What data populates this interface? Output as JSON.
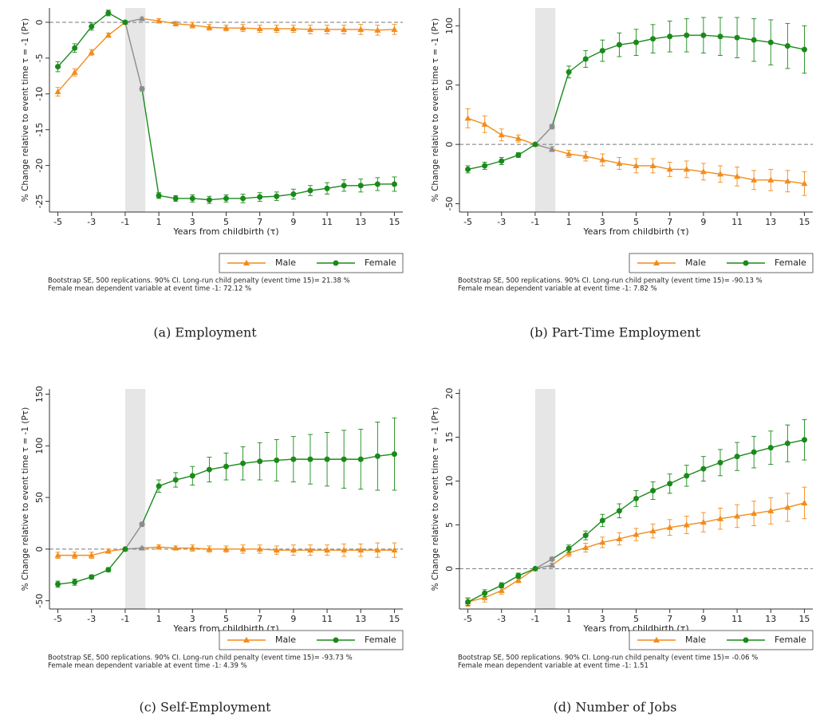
{
  "chart_data": [
    {
      "type": "line",
      "caption": "(a) Employment",
      "xlabel": "Years from childbirth (τ)",
      "ylabel": "% Change relative to event time τ = -1 (Pτ)",
      "x": [
        -5,
        -4,
        -3,
        -2,
        -1,
        0,
        1,
        2,
        3,
        4,
        5,
        6,
        7,
        8,
        9,
        10,
        11,
        12,
        13,
        14,
        15
      ],
      "xlim": [
        -5.5,
        15.5
      ],
      "xticks": [
        -5,
        -3,
        -1,
        1,
        3,
        5,
        7,
        9,
        11,
        13,
        15
      ],
      "ylim": [
        -26.5,
        2
      ],
      "yticks": [
        -25,
        -20,
        -15,
        -10,
        -5,
        0
      ],
      "ref_line": 0,
      "shade": [
        -1,
        0.2
      ],
      "event_color": "#8c8c8c",
      "legend": "bottom-right",
      "series": [
        {
          "name": "Male",
          "color": "#f28c1a",
          "marker": "triangle",
          "values": [
            -9.7,
            -7.0,
            -4.2,
            -1.8,
            0,
            0.5,
            0.2,
            -0.2,
            -0.4,
            -0.7,
            -0.8,
            -0.8,
            -0.9,
            -0.9,
            -0.9,
            -1.0,
            -1.0,
            -1.0,
            -1.0,
            -1.1,
            -1.0
          ],
          "errors": [
            0.6,
            0.5,
            0.4,
            0.3,
            0,
            0.2,
            0.3,
            0.3,
            0.4,
            0.4,
            0.4,
            0.5,
            0.5,
            0.5,
            0.5,
            0.6,
            0.6,
            0.6,
            0.7,
            0.7,
            0.7
          ]
        },
        {
          "name": "Female",
          "color": "#1a8a1a",
          "marker": "circle",
          "values": [
            -6.2,
            -3.6,
            -0.6,
            1.3,
            0,
            -9.3,
            -24.2,
            -24.6,
            -24.6,
            -24.8,
            -24.6,
            -24.6,
            -24.4,
            -24.3,
            -24.0,
            -23.5,
            -23.2,
            -22.8,
            -22.8,
            -22.6,
            -22.6
          ],
          "errors": [
            0.7,
            0.6,
            0.5,
            0.4,
            0,
            0.3,
            0.4,
            0.4,
            0.5,
            0.5,
            0.5,
            0.6,
            0.6,
            0.6,
            0.7,
            0.7,
            0.8,
            0.8,
            0.9,
            0.9,
            1.0
          ]
        }
      ],
      "notes": [
        "Bootstrap SE, 500 replications. 90% CI. Long-run child penalty (event time 15)= 21.38 %",
        "Female mean dependent variable at event time -1: 72.12 %"
      ]
    },
    {
      "type": "line",
      "caption": "(b) Part-Time Employment",
      "xlabel": "Years from childbirth (τ)",
      "ylabel": "% Change relative to event time τ = -1 (Pτ)",
      "x": [
        -5,
        -4,
        -3,
        -2,
        -1,
        0,
        1,
        2,
        3,
        4,
        5,
        6,
        7,
        8,
        9,
        10,
        11,
        12,
        13,
        14,
        15
      ],
      "xlim": [
        -5.5,
        15.5
      ],
      "xticks": [
        -5,
        -3,
        -1,
        1,
        3,
        5,
        7,
        9,
        11,
        13,
        15
      ],
      "ylim": [
        -57,
        115
      ],
      "yticks": [
        -50,
        0,
        50,
        100
      ],
      "ref_line": 0,
      "shade": [
        -1,
        0.2
      ],
      "event_color": "#8c8c8c",
      "legend": "bottom-right",
      "series": [
        {
          "name": "Male",
          "color": "#f28c1a",
          "marker": "triangle",
          "values": [
            22,
            17,
            8,
            5,
            0,
            -4,
            -8,
            -10,
            -13,
            -16,
            -18,
            -18,
            -21,
            -21,
            -23,
            -25,
            -27,
            -30,
            -30,
            -31,
            -33
          ],
          "errors": [
            8,
            7,
            5,
            3,
            0,
            2,
            3,
            4,
            5,
            5,
            6,
            6,
            6,
            7,
            7,
            7,
            8,
            8,
            9,
            9,
            10
          ]
        },
        {
          "name": "Female",
          "color": "#1a8a1a",
          "marker": "circle",
          "values": [
            -21,
            -18,
            -14,
            -9,
            0,
            15,
            61,
            72,
            79,
            84,
            86,
            89,
            91,
            92,
            92,
            91,
            90,
            88,
            86,
            83,
            80
          ],
          "errors": [
            3,
            3,
            3,
            2,
            0,
            2,
            5,
            7,
            9,
            10,
            11,
            12,
            13,
            14,
            15,
            16,
            17,
            18,
            19,
            19,
            20
          ]
        }
      ],
      "notes": [
        "Bootstrap SE, 500 replications. 90% CI. Long-run child penalty (event time 15)= -90.13 %",
        "Female mean dependent variable at event time -1: 7.82 %"
      ]
    },
    {
      "type": "line",
      "caption": "(c) Self-Employment",
      "xlabel": "Years from childbirth (τ)",
      "ylabel": "% Change relative to event time τ = -1 (Pτ)",
      "x": [
        -5,
        -4,
        -3,
        -2,
        -1,
        0,
        1,
        2,
        3,
        4,
        5,
        6,
        7,
        8,
        9,
        10,
        11,
        12,
        13,
        14,
        15
      ],
      "xlim": [
        -5.5,
        15.5
      ],
      "xticks": [
        -5,
        -3,
        -1,
        1,
        3,
        5,
        7,
        9,
        11,
        13,
        15
      ],
      "ylim": [
        -58,
        155
      ],
      "yticks": [
        -50,
        0,
        50,
        100,
        150
      ],
      "ref_line": 0,
      "shade": [
        -1,
        0.2
      ],
      "event_color": "#8c8c8c",
      "legend": "bottom-right",
      "series": [
        {
          "name": "Male",
          "color": "#f28c1a",
          "marker": "triangle",
          "values": [
            -6,
            -6,
            -6,
            -2,
            0,
            1,
            2,
            1,
            1,
            0,
            0,
            0,
            0,
            -1,
            -1,
            -1,
            -1,
            -1,
            -1,
            -1,
            -1
          ],
          "errors": [
            3,
            3,
            3,
            2,
            0,
            1,
            2,
            2,
            3,
            3,
            3,
            4,
            4,
            4,
            5,
            5,
            5,
            6,
            6,
            7,
            7
          ]
        },
        {
          "name": "Female",
          "color": "#1a8a1a",
          "marker": "circle",
          "values": [
            -34,
            -32,
            -27,
            -20,
            0,
            24,
            61,
            67,
            71,
            77,
            80,
            83,
            85,
            86,
            87,
            87,
            87,
            87,
            87,
            90,
            92
          ],
          "errors": [
            3,
            3,
            2,
            2,
            0,
            2,
            6,
            7,
            9,
            12,
            13,
            16,
            18,
            20,
            22,
            24,
            26,
            28,
            29,
            33,
            35
          ]
        }
      ],
      "notes": [
        "Bootstrap SE, 500 replications. 90% CI. Long-run child penalty (event time 15)= -93.73 %",
        "Female mean dependent variable at event time -1: 4.39 %"
      ]
    },
    {
      "type": "line",
      "caption": "(d) Number of Jobs",
      "xlabel": "Years from childbirth (τ)",
      "ylabel": "% Change relative to event time τ = -1 (Pτ)",
      "x": [
        -5,
        -4,
        -3,
        -2,
        -1,
        0,
        1,
        2,
        3,
        4,
        5,
        6,
        7,
        8,
        9,
        10,
        11,
        12,
        13,
        14,
        15
      ],
      "xlim": [
        -5.5,
        15.5
      ],
      "xticks": [
        -5,
        -3,
        -1,
        1,
        3,
        5,
        7,
        9,
        11,
        13,
        15
      ],
      "ylim": [
        -4.6,
        20.5
      ],
      "yticks": [
        0,
        5,
        10,
        15,
        20
      ],
      "ref_line": 0,
      "shade": [
        -1,
        0.2
      ],
      "event_color": "#8c8c8c",
      "legend": "bottom-right",
      "series": [
        {
          "name": "Male",
          "color": "#f28c1a",
          "marker": "triangle",
          "values": [
            -3.8,
            -3.3,
            -2.5,
            -1.3,
            0,
            0.4,
            1.8,
            2.4,
            3.0,
            3.4,
            3.9,
            4.3,
            4.7,
            5.0,
            5.3,
            5.7,
            6.0,
            6.3,
            6.6,
            7.0,
            7.5
          ],
          "errors": [
            0.5,
            0.5,
            0.4,
            0.3,
            0,
            0.2,
            0.4,
            0.5,
            0.6,
            0.7,
            0.7,
            0.8,
            0.9,
            1.0,
            1.1,
            1.2,
            1.3,
            1.4,
            1.5,
            1.6,
            1.8
          ]
        },
        {
          "name": "Female",
          "color": "#1a8a1a",
          "marker": "circle",
          "values": [
            -3.8,
            -2.8,
            -1.9,
            -0.8,
            0,
            1.1,
            2.3,
            3.8,
            5.5,
            6.6,
            8.0,
            8.9,
            9.7,
            10.6,
            11.4,
            12.1,
            12.8,
            13.3,
            13.8,
            14.3,
            14.7
          ],
          "errors": [
            0.4,
            0.4,
            0.3,
            0.3,
            0,
            0.2,
            0.4,
            0.5,
            0.7,
            0.8,
            0.9,
            1.0,
            1.1,
            1.2,
            1.4,
            1.5,
            1.6,
            1.8,
            1.9,
            2.1,
            2.3
          ]
        }
      ],
      "notes": [
        "Bootstrap SE, 500 replications. 90% CI. Long-run child penalty (event time 15)= -0.06 %",
        "Female mean dependent variable at event time -1: 1.51"
      ]
    }
  ]
}
